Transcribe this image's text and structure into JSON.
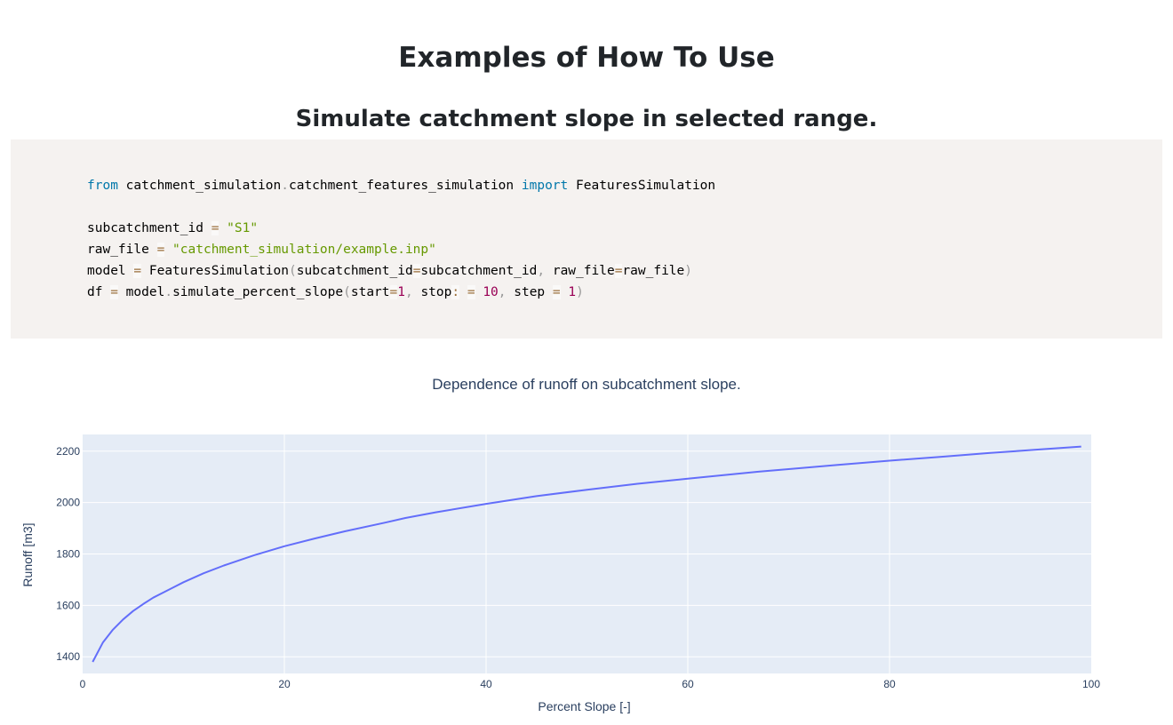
{
  "page": {
    "title": "Examples of How To Use",
    "section_title": "Simulate catchment slope in selected range."
  },
  "code": {
    "line1": {
      "kw_from": "from",
      "module": " catchment_simulation",
      "dot": ".",
      "submodule": "catchment_features_simulation ",
      "kw_import": "import",
      "cls": " FeaturesSimulation"
    },
    "line3": {
      "var": "subcatchment_id ",
      "eq": "=",
      "sp": " ",
      "val": "\"S1\""
    },
    "line4": {
      "var": "raw_file ",
      "eq": "=",
      "sp": " ",
      "val": "\"catchment_simulation/example.inp\""
    },
    "line5": {
      "var": "model ",
      "eq": "=",
      "call": " FeaturesSimulation",
      "lp": "(",
      "arg1": "subcatchment_id",
      "eq2": "=",
      "arg1v": "subcatchment_id",
      "comma": ",",
      "arg2": " raw_file",
      "eq3": "=",
      "arg2v": "raw_file",
      "rp": ")"
    },
    "line6": {
      "var": "df ",
      "eq": "=",
      "obj": " model",
      "dot": ".",
      "fn": "simulate_percent_slope",
      "lp": "(",
      "a1": "start",
      "eq1": "=",
      "v1": "1",
      "c1": ",",
      "a2": " stop",
      "colon": ":",
      "sp2": " ",
      "eq2": "=",
      "sp3": " ",
      "v2": "10",
      "c2": ",",
      "a3": " step ",
      "eq3": "=",
      "sp4": " ",
      "v3": "1",
      "rp": ")"
    }
  },
  "chart_data": {
    "type": "line",
    "title": "Dependence of runoff on subcatchment slope.",
    "xlabel": "Percent Slope [-]",
    "ylabel": "Runoff [m3]",
    "xlim": [
      0,
      100
    ],
    "ylim": [
      1335,
      2265
    ],
    "x_ticks": [
      "0",
      "20",
      "40",
      "60",
      "80",
      "100"
    ],
    "y_ticks": [
      "1400",
      "1600",
      "1800",
      "2000",
      "2200"
    ],
    "series": [
      {
        "name": "runoff",
        "color": "#636efa",
        "x": [
          1,
          2,
          3,
          4,
          5,
          6,
          7,
          8,
          9,
          10,
          12,
          14,
          17,
          20,
          23,
          26,
          30,
          32,
          35,
          40,
          45,
          50,
          55,
          60,
          67,
          70,
          75,
          80,
          85,
          90,
          95,
          99
        ],
        "y": [
          1380,
          1455,
          1505,
          1545,
          1578,
          1605,
          1630,
          1650,
          1670,
          1690,
          1725,
          1755,
          1795,
          1830,
          1860,
          1888,
          1922,
          1940,
          1962,
          1995,
          2025,
          2050,
          2073,
          2093,
          2120,
          2130,
          2147,
          2163,
          2178,
          2193,
          2207,
          2218
        ]
      }
    ],
    "plot_bg": "#e5ecf6",
    "grid_color": "#ffffff"
  }
}
